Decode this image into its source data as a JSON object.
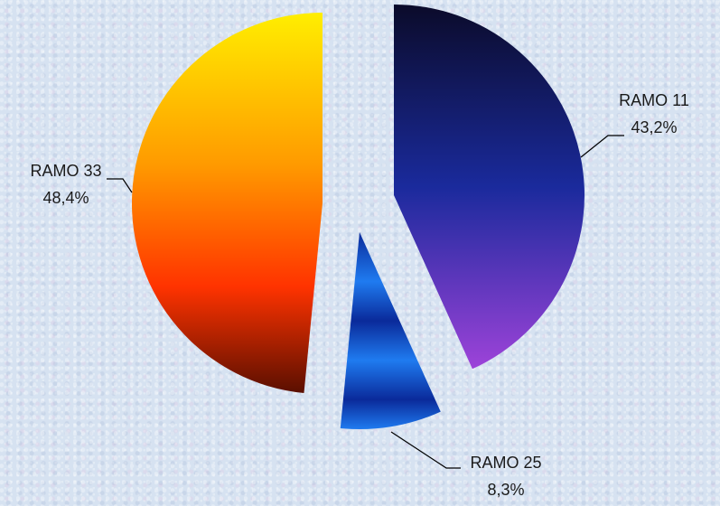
{
  "chart_data": {
    "type": "pie",
    "title": "",
    "slices": [
      {
        "label": "RAMO 11",
        "value": 43.2,
        "value_label": "43,2%"
      },
      {
        "label": "RAMO 25",
        "value": 8.3,
        "value_label": "8,3%"
      },
      {
        "label": "RAMO 33",
        "value": 48.4,
        "value_label": "48,4%"
      }
    ],
    "exploded": true,
    "start_angle": "12 o'clock",
    "direction": "clockwise",
    "gradients": {
      "RAMO 11": [
        "#0b0b2a",
        "#1a2a9c",
        "#9d43d9"
      ],
      "RAMO 25": [
        "#0a2a9a",
        "#1f7bf0",
        "#0a2a9a"
      ],
      "RAMO 33": [
        "#ffee00",
        "#ff8c00",
        "#ff3300",
        "#5a0f00"
      ]
    },
    "background_color": "#d6e2f1"
  }
}
